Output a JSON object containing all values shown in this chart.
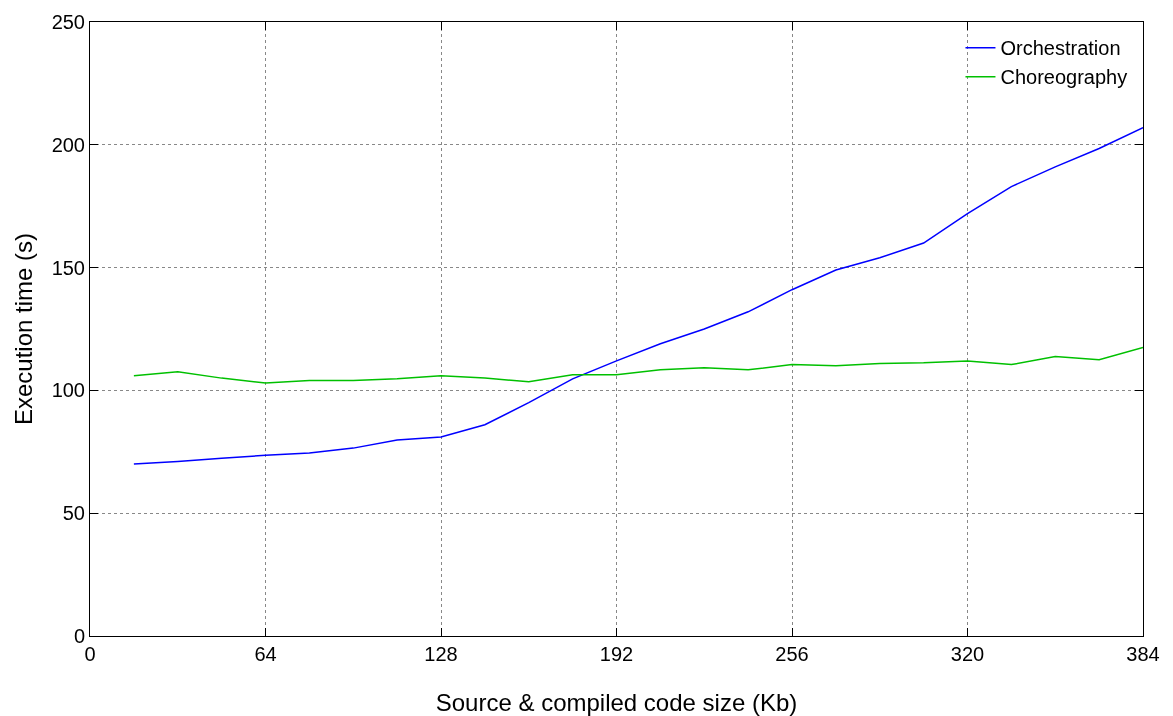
{
  "chart_data": {
    "type": "line",
    "xlabel": "Source & compiled code size (Kb)",
    "ylabel": "Execution time (s)",
    "x": [
      16,
      32,
      48,
      64,
      80,
      96,
      112,
      128,
      144,
      160,
      176,
      192,
      208,
      224,
      240,
      256,
      272,
      288,
      304,
      320,
      336,
      352,
      368,
      384
    ],
    "series": [
      {
        "name": "Orchestration",
        "color": "#0000ff",
        "values": [
          70,
          71,
          72.4,
          73.6,
          74.5,
          76.5,
          79.8,
          81,
          86,
          95,
          104.7,
          112,
          119,
          125,
          132,
          141,
          149,
          154,
          160,
          172,
          183,
          191,
          198.5,
          207
        ]
      },
      {
        "name": "Choreography",
        "color": "#00c000",
        "values": [
          106,
          107.6,
          105,
          103,
          104,
          104,
          104.7,
          106,
          105,
          103.5,
          106.4,
          106.4,
          108.4,
          109.2,
          108.4,
          110.5,
          110,
          111,
          111.3,
          112,
          110.5,
          113.8,
          112.5,
          117.5
        ]
      }
    ],
    "xlim": [
      0,
      384
    ],
    "xticks": [
      0,
      64,
      128,
      192,
      256,
      320,
      384
    ],
    "ylim": [
      0,
      250
    ],
    "yticks": [
      0,
      50,
      100,
      150,
      200,
      250
    ],
    "grid": true,
    "legend": "top right",
    "marker": "none",
    "line_style": "solid"
  }
}
